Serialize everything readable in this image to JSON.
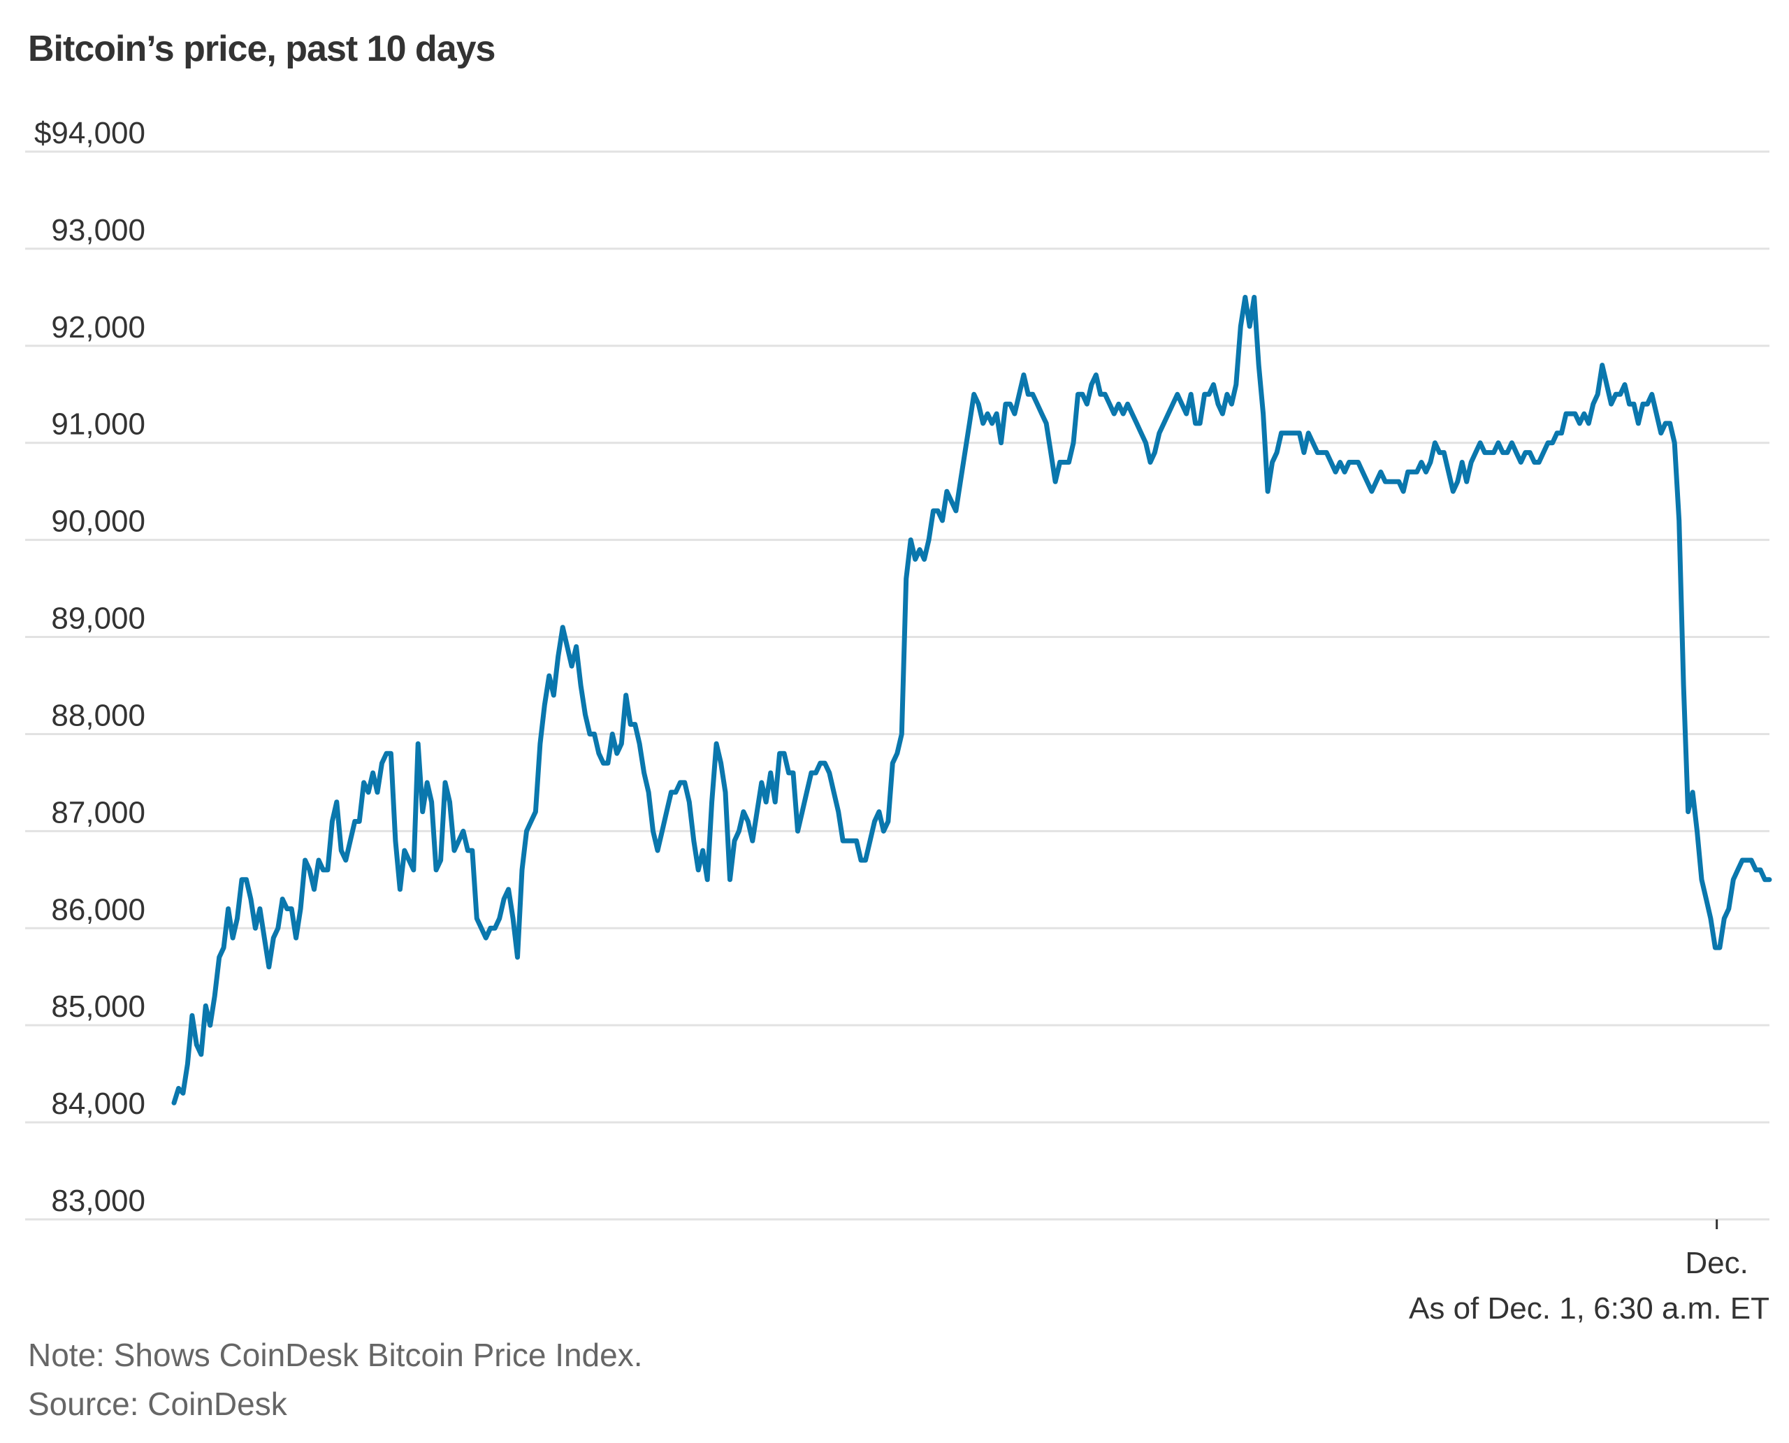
{
  "chart_data": {
    "type": "line",
    "title": "Bitcoin’s price, past 10 days",
    "xlabel": "",
    "ylabel": "",
    "ylim": [
      83000,
      94000
    ],
    "y_ticks": [
      "$94,000",
      "93,000",
      "92,000",
      "91,000",
      "90,000",
      "89,000",
      "88,000",
      "87,000",
      "86,000",
      "85,000",
      "84,000",
      "83,000"
    ],
    "y_tick_values": [
      94000,
      93000,
      92000,
      91000,
      90000,
      89000,
      88000,
      87000,
      86000,
      85000,
      84000,
      83000
    ],
    "x_ticks": [
      {
        "label": "Dec.",
        "at": "Dec. 1"
      }
    ],
    "x_range": [
      "past 10 days",
      "Dec. 1, 6:30 a.m. ET"
    ],
    "as_of": "As of Dec. 1, 6:30 a.m. ET",
    "grid": true,
    "line_color": "#0a77ad",
    "series": [
      {
        "values": [
          84200,
          84350,
          84300,
          84600,
          85100,
          84800,
          84700,
          85200,
          85000,
          85300,
          85700,
          85800,
          86200,
          85900,
          86100,
          86500,
          86500,
          86300,
          86000,
          86200,
          85900,
          85600,
          85900,
          86000,
          86300,
          86200,
          86200,
          85900,
          86200,
          86700,
          86600,
          86400,
          86700,
          86600,
          86600,
          87100,
          87300,
          86800,
          86700,
          86900,
          87100,
          87100,
          87500,
          87400,
          87600,
          87400,
          87700,
          87800,
          87800,
          86900,
          86400,
          86800,
          86700,
          86600,
          87900,
          87200,
          87500,
          87300,
          86600,
          86700,
          87500,
          87300,
          86800,
          86900,
          87000,
          86800,
          86800,
          86100,
          86000,
          85900,
          86000,
          86000,
          86100,
          86300,
          86400,
          86100,
          85700,
          86600,
          87000,
          87100,
          87200,
          87900,
          88300,
          88600,
          88400,
          88800,
          89100,
          88900,
          88700,
          88900,
          88500,
          88200,
          88000,
          88000,
          87800,
          87700,
          87700,
          88000,
          87800,
          87900,
          88400,
          88100,
          88100,
          87900,
          87600,
          87400,
          87000,
          86800,
          87000,
          87200,
          87400,
          87400,
          87500,
          87500,
          87300,
          86900,
          86600,
          86800,
          86500,
          87300,
          87900,
          87700,
          87400,
          86500,
          86900,
          87000,
          87200,
          87100,
          86900,
          87200,
          87500,
          87300,
          87600,
          87300,
          87800,
          87800,
          87600,
          87600,
          87000,
          87200,
          87400,
          87600,
          87600,
          87700,
          87700,
          87600,
          87400,
          87200,
          86900,
          86900,
          86900,
          86900,
          86700,
          86700,
          86900,
          87100,
          87200,
          87000,
          87100,
          87700,
          87800,
          88000,
          89600,
          90000,
          89800,
          89900,
          89800,
          90000,
          90300,
          90300,
          90200,
          90500,
          90400,
          90300,
          90600,
          90900,
          91200,
          91500,
          91400,
          91200,
          91300,
          91200,
          91300,
          91000,
          91400,
          91400,
          91300,
          91500,
          91700,
          91500,
          91500,
          91400,
          91300,
          91200,
          90900,
          90600,
          90800,
          90800,
          90800,
          91000,
          91500,
          91500,
          91400,
          91600,
          91700,
          91500,
          91500,
          91400,
          91300,
          91400,
          91300,
          91400,
          91300,
          91200,
          91100,
          91000,
          90800,
          90900,
          91100,
          91200,
          91300,
          91400,
          91500,
          91400,
          91300,
          91500,
          91200,
          91200,
          91500,
          91500,
          91600,
          91400,
          91300,
          91500,
          91400,
          91600,
          92200,
          92500,
          92200,
          92500,
          91800,
          91300,
          90500,
          90800,
          90900,
          91100,
          91100,
          91100,
          91100,
          91100,
          90900,
          91100,
          91000,
          90900,
          90900,
          90900,
          90800,
          90700,
          90800,
          90700,
          90800,
          90800,
          90800,
          90700,
          90600,
          90500,
          90600,
          90700,
          90600,
          90600,
          90600,
          90600,
          90500,
          90700,
          90700,
          90700,
          90800,
          90700,
          90800,
          91000,
          90900,
          90900,
          90700,
          90500,
          90600,
          90800,
          90600,
          90800,
          90900,
          91000,
          90900,
          90900,
          90900,
          91000,
          90900,
          90900,
          91000,
          90900,
          90800,
          90900,
          90900,
          90800,
          90800,
          90900,
          91000,
          91000,
          91100,
          91100,
          91300,
          91300,
          91300,
          91200,
          91300,
          91200,
          91400,
          91500,
          91800,
          91600,
          91400,
          91500,
          91500,
          91600,
          91400,
          91400,
          91200,
          91400,
          91400,
          91500,
          91300,
          91100,
          91200,
          91200,
          91000,
          90200,
          88500,
          87200,
          87400,
          87000,
          86500,
          86300,
          86100,
          85800,
          85800,
          86100,
          86200,
          86500,
          86600,
          86700,
          86700,
          86700,
          86600,
          86600,
          86500,
          86500
        ]
      }
    ]
  },
  "footer": {
    "note": "Note: Shows CoinDesk Bitcoin Price Index.",
    "source": "Source: CoinDesk"
  }
}
